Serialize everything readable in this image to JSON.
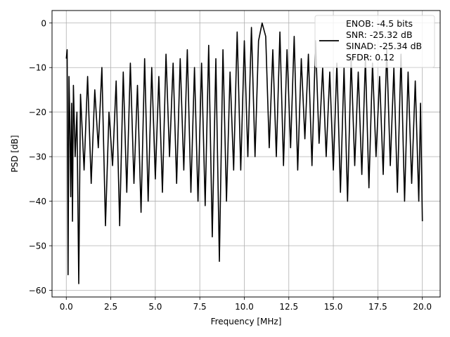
{
  "chart_data": {
    "type": "line",
    "title": "",
    "xlabel": "Frequency [MHz]",
    "ylabel": "PSD [dB]",
    "xlim": [
      -0.8,
      21.0
    ],
    "ylim": [
      -61.5,
      2.8
    ],
    "grid": true,
    "x_ticks": [
      0.0,
      2.5,
      5.0,
      7.5,
      10.0,
      12.5,
      15.0,
      17.5,
      20.0
    ],
    "x_tick_labels": [
      "0.0",
      "2.5",
      "5.0",
      "7.5",
      "10.0",
      "12.5",
      "15.0",
      "17.5",
      "20.0"
    ],
    "y_ticks": [
      0,
      -10,
      -20,
      -30,
      -40,
      -50,
      -60
    ],
    "y_tick_labels": [
      "0",
      "−10",
      "−20",
      "−30",
      "−40",
      "−50",
      "−60"
    ],
    "legend": {
      "placement": "top-right",
      "lines": [
        "ENOB: -4.5 bits",
        "SNR: -25.32 dB",
        "SINAD: -25.34 dB",
        "SFDR: 0.12"
      ]
    },
    "series": [
      {
        "color": "#000000",
        "x": [
          0.0,
          0.05,
          0.1,
          0.15,
          0.2,
          0.25,
          0.3,
          0.35,
          0.4,
          0.5,
          0.6,
          0.7,
          0.8,
          1.0,
          1.2,
          1.4,
          1.6,
          1.8,
          2.0,
          2.2,
          2.4,
          2.6,
          2.8,
          3.0,
          3.2,
          3.4,
          3.6,
          3.8,
          4.0,
          4.2,
          4.4,
          4.6,
          4.8,
          5.0,
          5.2,
          5.4,
          5.6,
          5.8,
          6.0,
          6.2,
          6.4,
          6.6,
          6.8,
          7.0,
          7.2,
          7.4,
          7.6,
          7.8,
          8.0,
          8.2,
          8.4,
          8.6,
          8.8,
          9.0,
          9.2,
          9.4,
          9.6,
          9.8,
          10.0,
          10.2,
          10.4,
          10.6,
          10.8,
          11.0,
          11.2,
          11.4,
          11.6,
          11.8,
          12.0,
          12.2,
          12.4,
          12.6,
          12.8,
          13.0,
          13.2,
          13.4,
          13.6,
          13.8,
          14.0,
          14.2,
          14.4,
          14.6,
          14.8,
          15.0,
          15.2,
          15.4,
          15.6,
          15.8,
          16.0,
          16.2,
          16.4,
          16.6,
          16.8,
          17.0,
          17.2,
          17.4,
          17.6,
          17.8,
          18.0,
          18.2,
          18.4,
          18.6,
          18.8,
          19.0,
          19.2,
          19.4,
          19.6,
          19.8,
          19.9,
          20.0
        ],
        "y": [
          -8,
          -6,
          -56.5,
          -12,
          -22,
          -39,
          -18,
          -44.5,
          -14,
          -30,
          -20,
          -58.5,
          -16,
          -33,
          -12,
          -36,
          -15,
          -28,
          -10,
          -45.5,
          -20,
          -32,
          -13,
          -45.5,
          -11,
          -38,
          -9,
          -36,
          -14,
          -42.5,
          -8,
          -40,
          -10,
          -35,
          -12,
          -38,
          -7,
          -30,
          -9,
          -36,
          -8,
          -33,
          -6,
          -38,
          -10,
          -40,
          -9,
          -41,
          -5,
          -48,
          -8,
          -53.5,
          -6,
          -40,
          -11,
          -33,
          -2,
          -33,
          -4,
          -30,
          -1,
          -30,
          -4,
          0,
          -3,
          -28,
          -6,
          -30,
          -2,
          -32,
          -6,
          -28,
          -3,
          -33,
          -8,
          -26,
          -7,
          -32,
          -4,
          -27,
          -10,
          -30,
          -11,
          -33,
          -9,
          -38,
          -10,
          -40,
          -8,
          -32,
          -11,
          -34,
          -8,
          -37,
          -9,
          -30,
          -12,
          -34,
          -6,
          -32,
          -10,
          -38,
          -7,
          -40,
          -11,
          -36,
          -13,
          -40,
          -18,
          -44.5
        ]
      }
    ]
  }
}
